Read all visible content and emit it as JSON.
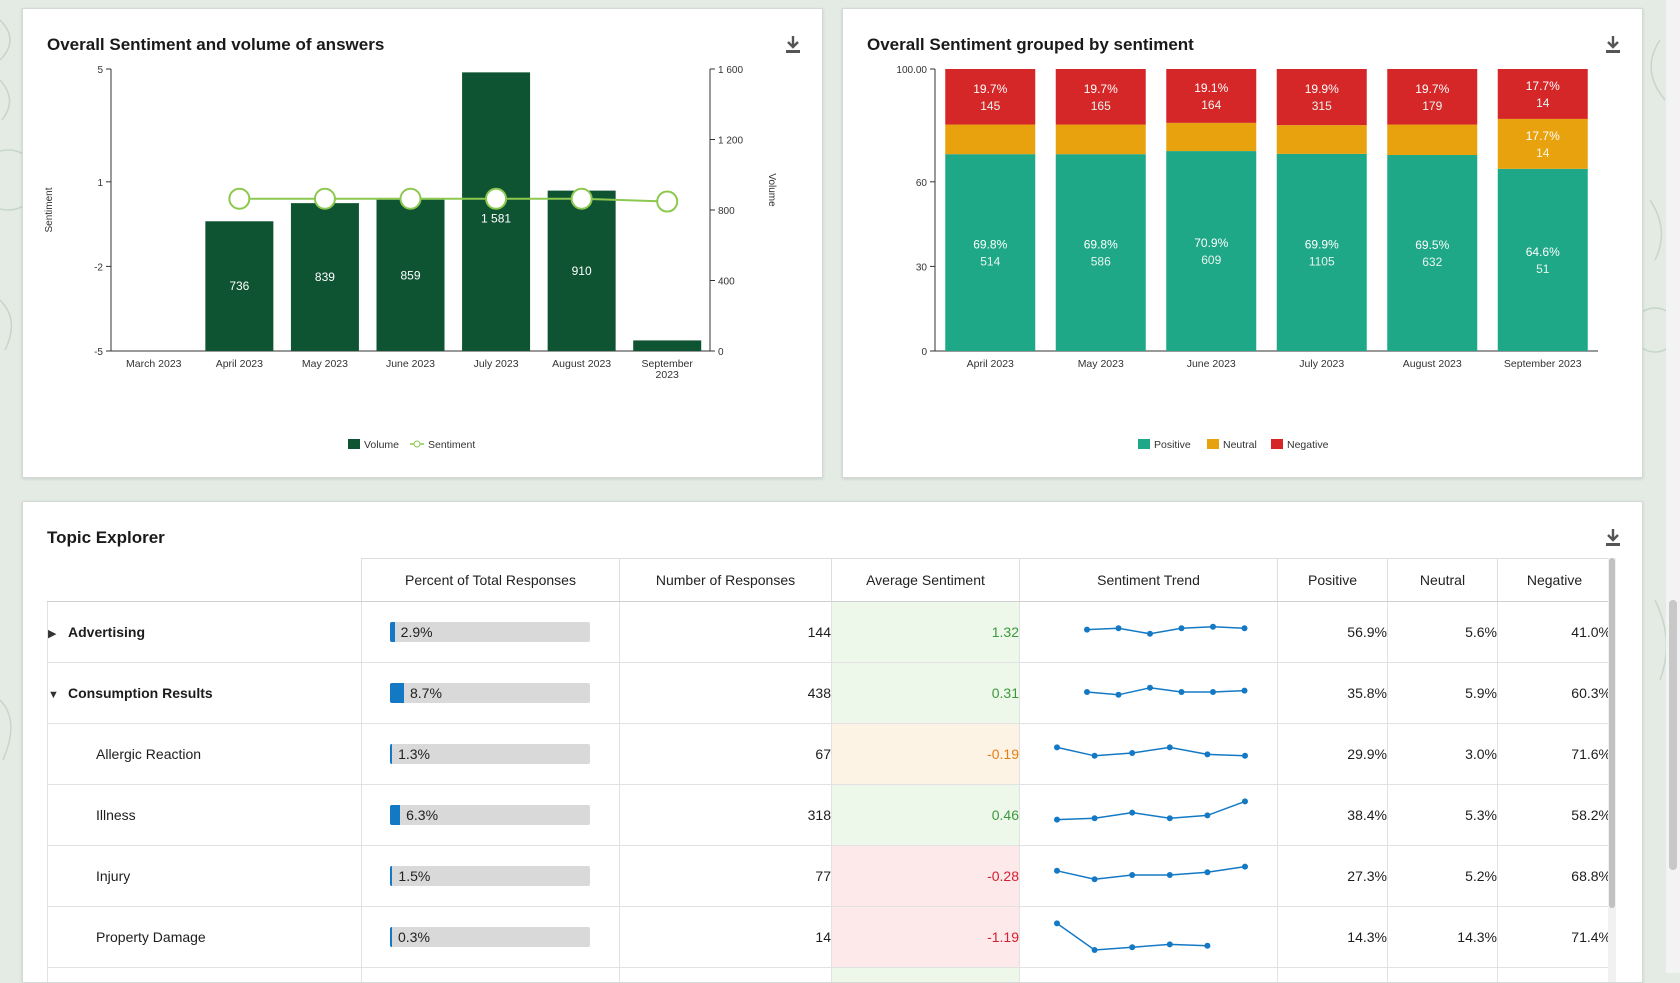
{
  "colors": {
    "volume": "#0f5432",
    "sentiment": "#8cc850",
    "positive": "#1fa887",
    "neutral": "#e8a20d",
    "negative": "#d62728",
    "bar_fill": "#1479c4",
    "sent_good_bg": "#edf7ea",
    "sent_warn_bg": "#fdf3e4",
    "sent_bad_bg": "#fde8ea",
    "sent_good_fg": "#3c9a3c",
    "sent_warn_fg": "#e67e13",
    "sent_bad_fg": "#d42030"
  },
  "card1": {
    "title": "Overall Sentiment and volume of answers",
    "download_icon": "download-icon"
  },
  "card2": {
    "title": "Overall Sentiment grouped by sentiment",
    "download_icon": "download-icon"
  },
  "card3": {
    "title": "Topic Explorer",
    "download_icon": "download-icon"
  },
  "chart_data": [
    {
      "type": "bar",
      "title": "Overall Sentiment and volume of answers",
      "categories": [
        "March 2023",
        "April 2023",
        "May 2023",
        "June 2023",
        "July 2023",
        "August 2023",
        "September 2023"
      ],
      "series": [
        {
          "name": "Volume",
          "type": "bar",
          "axis": "right",
          "values": [
            0,
            736,
            839,
            859,
            1581,
            910,
            60
          ],
          "labels": [
            "",
            "736",
            "839",
            "859",
            "1 581",
            "910",
            ""
          ]
        },
        {
          "name": "Sentiment",
          "type": "line",
          "axis": "left",
          "values": [
            null,
            0.4,
            0.4,
            0.4,
            0.4,
            0.4,
            0.3
          ]
        }
      ],
      "ylabel": "Sentiment",
      "y2label": "Volume",
      "y_ticks": [
        "5",
        "1",
        "-2",
        "-5"
      ],
      "y2_ticks": [
        "1 600",
        "1 200",
        "800",
        "400",
        "0"
      ],
      "ylim": [
        -5,
        5
      ],
      "y2lim": [
        0,
        1600
      ],
      "legend": [
        {
          "name": "Volume"
        },
        {
          "name": "Sentiment"
        }
      ],
      "legend_position": "bottom"
    },
    {
      "type": "bar",
      "stacked": true,
      "title": "Overall Sentiment grouped by sentiment",
      "categories": [
        "April 2023",
        "May 2023",
        "June 2023",
        "July 2023",
        "August 2023",
        "September 2023"
      ],
      "series": [
        {
          "name": "Positive",
          "values": [
            69.8,
            69.8,
            70.9,
            69.9,
            69.5,
            64.6
          ],
          "pct_labels": [
            "69.8%",
            "69.8%",
            "70.9%",
            "69.9%",
            "69.5%",
            "64.6%"
          ],
          "count_labels": [
            "514",
            "586",
            "609",
            "1105",
            "632",
            "51"
          ]
        },
        {
          "name": "Neutral",
          "values": [
            10.5,
            10.5,
            10.0,
            10.2,
            10.8,
            17.7
          ],
          "pct_labels": [
            "",
            "",
            "",
            "",
            "",
            "17.7%"
          ],
          "count_labels": [
            "",
            "",
            "",
            "",
            "",
            "14"
          ]
        },
        {
          "name": "Negative",
          "values": [
            19.7,
            19.7,
            19.1,
            19.9,
            19.7,
            17.7
          ],
          "pct_labels": [
            "19.7%",
            "19.7%",
            "19.1%",
            "19.9%",
            "19.7%",
            "17.7%"
          ],
          "count_labels": [
            "145",
            "165",
            "164",
            "315",
            "179",
            "14"
          ]
        }
      ],
      "y_ticks": [
        "100.00",
        "60",
        "30",
        "0"
      ],
      "ylim": [
        0,
        100
      ],
      "legend": [
        {
          "name": "Positive"
        },
        {
          "name": "Neutral"
        },
        {
          "name": "Negative"
        }
      ],
      "legend_position": "bottom"
    }
  ],
  "table": {
    "headers": [
      "",
      "Percent of Total Responses",
      "Number of Responses",
      "Average Sentiment",
      "Sentiment Trend",
      "Positive",
      "Neutral",
      "Negative"
    ],
    "rows": [
      {
        "name": "Advertising",
        "level": "parent",
        "expanded": false,
        "pct": "2.9%",
        "pct_value": 2.9,
        "count": "144",
        "sentiment": "1.32",
        "tone": "good",
        "trend": [
          0.55,
          0.6,
          0.4,
          0.6,
          0.65,
          0.6
        ],
        "positive": "56.9%",
        "neutral": "5.6%",
        "negative": "41.0%"
      },
      {
        "name": "Consumption Results",
        "level": "parent",
        "expanded": true,
        "pct": "8.7%",
        "pct_value": 8.7,
        "count": "438",
        "sentiment": "0.31",
        "tone": "good",
        "trend": [
          0.5,
          0.4,
          0.65,
          0.5,
          0.5,
          0.55
        ],
        "positive": "35.8%",
        "neutral": "5.9%",
        "negative": "60.3%"
      },
      {
        "name": "Allergic Reaction",
        "level": "child",
        "pct": "1.3%",
        "pct_value": 1.3,
        "count": "67",
        "sentiment": "-0.19",
        "tone": "warn",
        "trend": [
          0.7,
          0.4,
          0.5,
          0.7,
          0.45,
          0.4
        ],
        "positive": "29.9%",
        "neutral": "3.0%",
        "negative": "71.6%"
      },
      {
        "name": "Illness",
        "level": "child",
        "pct": "6.3%",
        "pct_value": 6.3,
        "count": "318",
        "sentiment": "0.46",
        "tone": "good",
        "trend": [
          0.3,
          0.35,
          0.55,
          0.35,
          0.45,
          0.95
        ],
        "positive": "38.4%",
        "neutral": "5.3%",
        "negative": "58.2%"
      },
      {
        "name": "Injury",
        "level": "child",
        "pct": "1.5%",
        "pct_value": 1.5,
        "count": "77",
        "sentiment": "-0.28",
        "tone": "bad",
        "trend": [
          0.65,
          0.35,
          0.5,
          0.5,
          0.6,
          0.8
        ],
        "positive": "27.3%",
        "neutral": "5.2%",
        "negative": "68.8%"
      },
      {
        "name": "Property Damage",
        "level": "child",
        "pct": "0.3%",
        "pct_value": 0.3,
        "count": "14",
        "sentiment": "-1.19",
        "tone": "bad",
        "trend": [
          0.95,
          0.0,
          0.1,
          0.2,
          0.15,
          null
        ],
        "positive": "14.3%",
        "neutral": "14.3%",
        "negative": "71.4%"
      }
    ]
  }
}
